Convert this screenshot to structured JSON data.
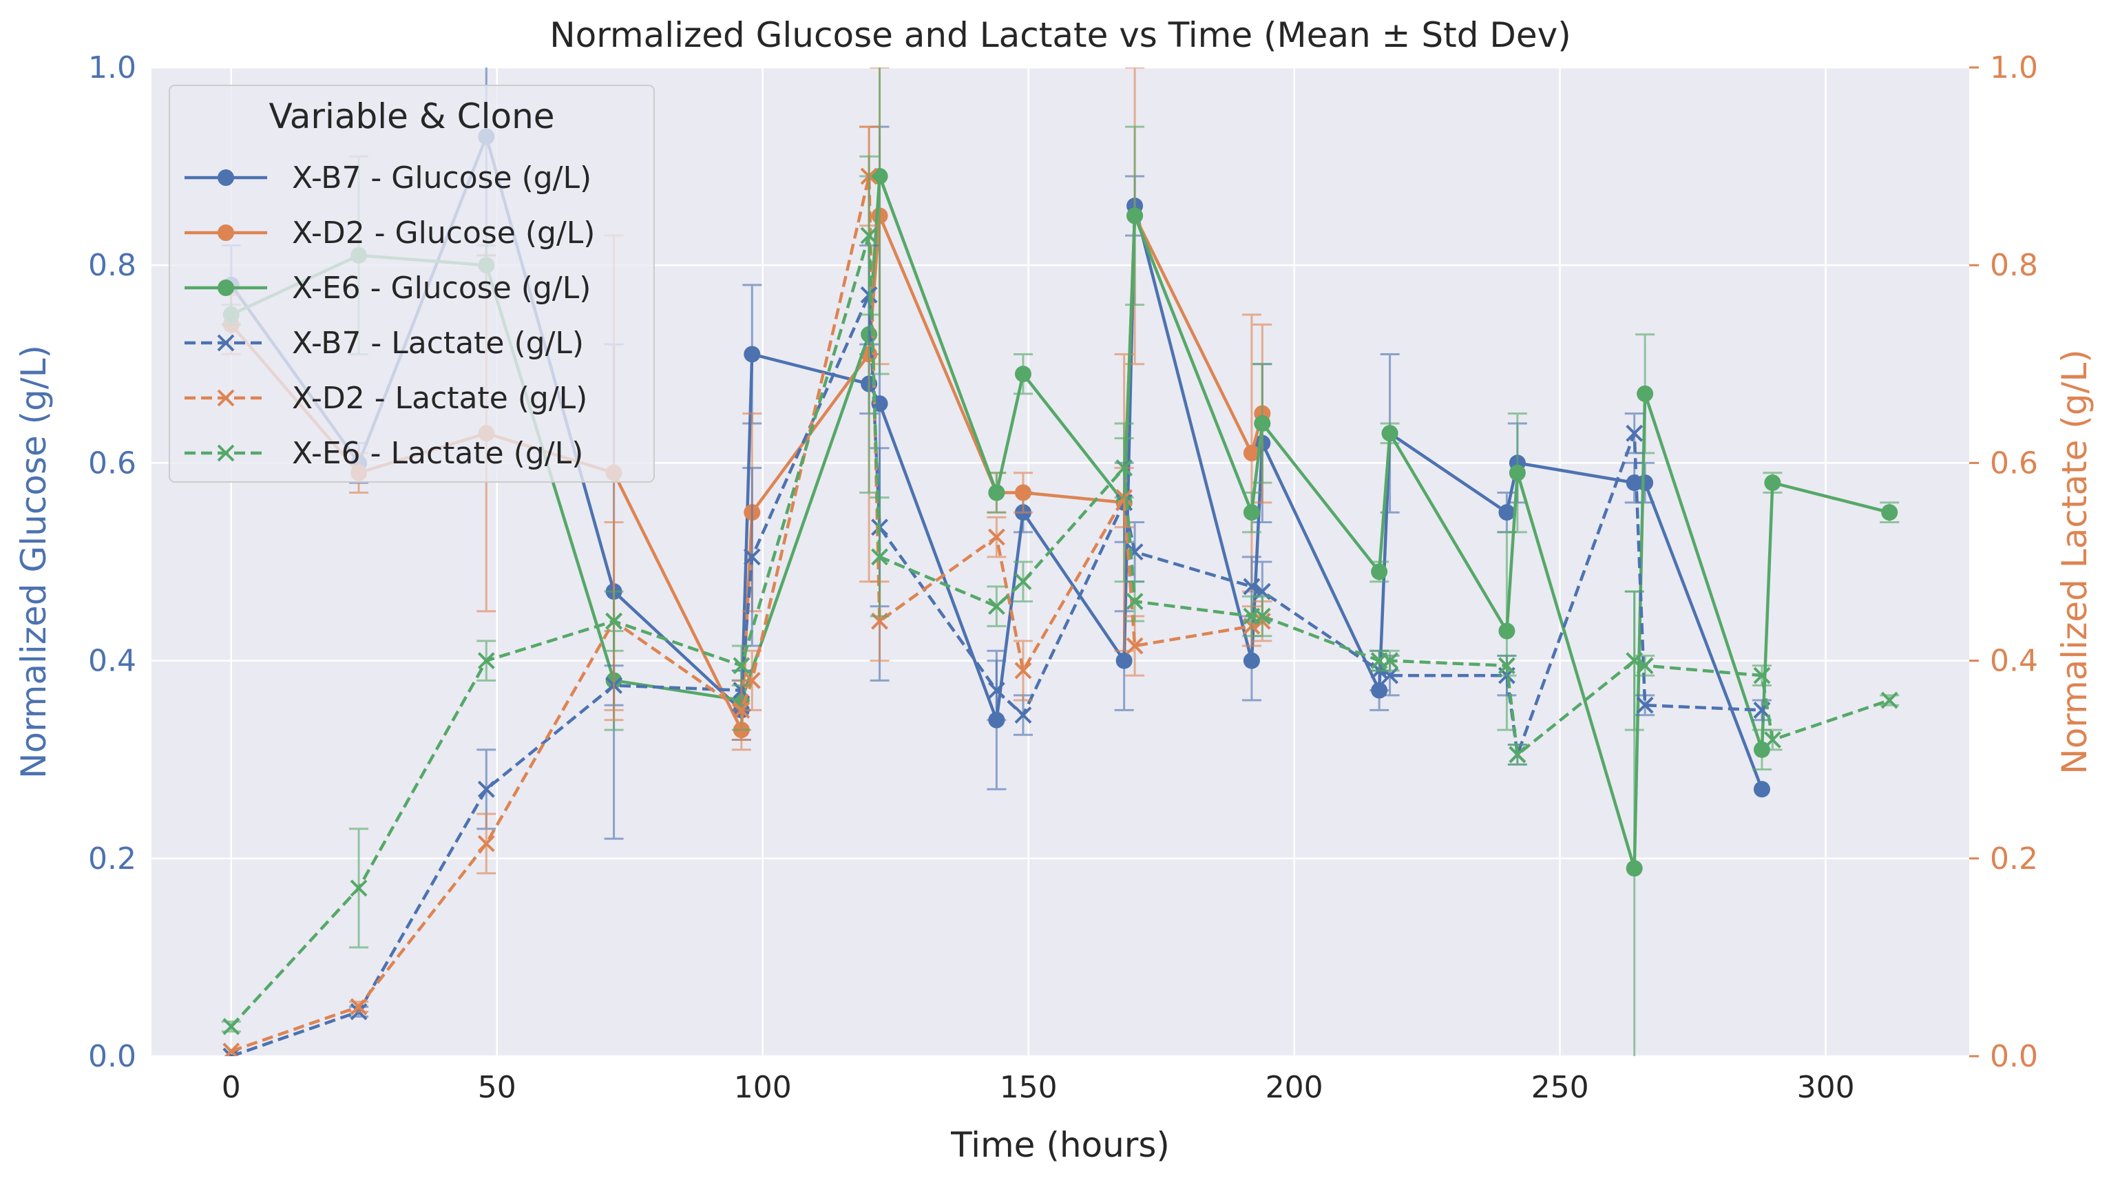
{
  "chart_data": {
    "type": "line",
    "title": "Normalized Glucose and Lactate vs Time (Mean ± Std Dev)",
    "xlabel": "Time (hours)",
    "ylabel_left": "Normalized Glucose (g/L)",
    "ylabel_right": "Normalized Lactate (g/L)",
    "xlim": [
      -15,
      327
    ],
    "ylim_left": [
      0,
      1
    ],
    "ylim_right": [
      0,
      1
    ],
    "xticks": [
      "0",
      "50",
      "100",
      "150",
      "200",
      "250",
      "300"
    ],
    "yticks_left": [
      "0.0",
      "0.2",
      "0.4",
      "0.6",
      "0.8",
      "1.0"
    ],
    "yticks_right": [
      "0.0",
      "0.2",
      "0.4",
      "0.6",
      "0.8",
      "1.0"
    ],
    "grid": true,
    "legend_title": "Variable & Clone",
    "legend_position": "top-left",
    "colors": {
      "axis_left": "#4c72b0",
      "axis_right": "#dd8452",
      "background": "#eaeaf2",
      "grid": "#ffffff"
    },
    "series": [
      {
        "name": "X-B7 - Glucose (g/L)",
        "color": "#4c72b0",
        "style": "solid",
        "marker": "circle",
        "x": [
          0,
          24,
          48,
          72,
          96,
          98,
          120,
          122,
          144,
          149,
          168,
          170,
          192,
          194,
          216,
          218,
          240,
          242,
          264,
          266,
          288
        ],
        "y": [
          0.78,
          0.6,
          0.93,
          0.47,
          0.35,
          0.71,
          0.68,
          0.66,
          0.34,
          0.55,
          0.4,
          0.86,
          0.4,
          0.62,
          0.37,
          0.63,
          0.55,
          0.6,
          0.58,
          0.58,
          0.27
        ],
        "err": [
          0.04,
          0.02,
          0.12,
          0.25,
          0.03,
          0.07,
          0.03,
          0.28,
          0.07,
          0.02,
          0.05,
          0.03,
          0.04,
          0.08,
          0.02,
          0.08,
          0.02,
          0.04,
          0.02,
          0.02,
          0.0
        ]
      },
      {
        "name": "X-D2 - Glucose (g/L)",
        "color": "#dd8452",
        "style": "solid",
        "marker": "circle",
        "x": [
          0,
          24,
          48,
          72,
          96,
          98,
          120,
          122,
          144,
          149,
          168,
          170,
          192,
          194
        ],
        "y": [
          0.74,
          0.59,
          0.63,
          0.59,
          0.33,
          0.55,
          0.71,
          0.85,
          0.57,
          0.57,
          0.56,
          0.85,
          0.61,
          0.65
        ],
        "err": [
          0.03,
          0.02,
          0.18,
          0.24,
          0.02,
          0.1,
          0.23,
          0.15,
          0.02,
          0.02,
          0.15,
          0.15,
          0.14,
          0.09
        ]
      },
      {
        "name": "X-E6 - Glucose (g/L)",
        "color": "#55a868",
        "style": "solid",
        "marker": "circle",
        "x": [
          0,
          24,
          48,
          72,
          96,
          120,
          122,
          144,
          149,
          168,
          170,
          192,
          194,
          216,
          218,
          240,
          242,
          264,
          266,
          288,
          290,
          312
        ],
        "y": [
          0.75,
          0.81,
          0.8,
          0.38,
          0.36,
          0.73,
          0.89,
          0.57,
          0.69,
          0.56,
          0.85,
          0.55,
          0.64,
          0.49,
          0.63,
          0.43,
          0.59,
          0.19,
          0.67,
          0.31,
          0.58,
          0.55
        ],
        "err": [
          0.01,
          0.1,
          0.02,
          0.05,
          0.03,
          0.16,
          0.2,
          0.02,
          0.02,
          0.08,
          0.09,
          0.02,
          0.06,
          0.01,
          0.01,
          0.1,
          0.06,
          0.28,
          0.06,
          0.02,
          0.01,
          0.01
        ]
      },
      {
        "name": "X-B7 - Lactate (g/L)",
        "color": "#4c72b0",
        "style": "dashed",
        "marker": "x",
        "x": [
          0,
          24,
          48,
          72,
          96,
          98,
          120,
          122,
          144,
          149,
          168,
          170,
          192,
          194,
          216,
          218,
          240,
          242,
          264,
          266,
          288
        ],
        "y": [
          0.0,
          0.045,
          0.27,
          0.375,
          0.37,
          0.505,
          0.77,
          0.535,
          0.37,
          0.345,
          0.56,
          0.51,
          0.475,
          0.47,
          0.39,
          0.385,
          0.385,
          0.305,
          0.63,
          0.355,
          0.35
        ],
        "err": [
          0.0,
          0.005,
          0.04,
          0.02,
          0.02,
          0.09,
          0.05,
          0.08,
          0.03,
          0.02,
          0.04,
          0.03,
          0.03,
          0.03,
          0.02,
          0.02,
          0.02,
          0.01,
          0.02,
          0.01,
          0.01
        ]
      },
      {
        "name": "X-D2 - Lactate (g/L)",
        "color": "#dd8452",
        "style": "dashed",
        "marker": "x",
        "x": [
          0,
          24,
          48,
          72,
          96,
          98,
          120,
          122,
          144,
          149,
          168,
          170,
          192,
          194
        ],
        "y": [
          0.005,
          0.05,
          0.215,
          0.44,
          0.35,
          0.38,
          0.89,
          0.44,
          0.525,
          0.39,
          0.565,
          0.415,
          0.435,
          0.44
        ],
        "err": [
          0.0,
          0.005,
          0.03,
          0.1,
          0.03,
          0.03,
          0.05,
          0.04,
          0.02,
          0.03,
          0.03,
          0.03,
          0.02,
          0.02
        ]
      },
      {
        "name": "X-E6 - Lactate (g/L)",
        "color": "#55a868",
        "style": "dashed",
        "marker": "x",
        "x": [
          0,
          24,
          48,
          72,
          96,
          120,
          122,
          144,
          149,
          168,
          170,
          192,
          194,
          216,
          218,
          240,
          242,
          264,
          266,
          288,
          290,
          312
        ],
        "y": [
          0.03,
          0.17,
          0.4,
          0.44,
          0.395,
          0.83,
          0.505,
          0.455,
          0.48,
          0.595,
          0.46,
          0.445,
          0.445,
          0.4,
          0.4,
          0.395,
          0.305,
          0.4,
          0.395,
          0.385,
          0.32,
          0.36
        ],
        "err": [
          0.005,
          0.06,
          0.02,
          0.03,
          0.02,
          0.08,
          0.06,
          0.02,
          0.02,
          0.03,
          0.02,
          0.02,
          0.02,
          0.01,
          0.01,
          0.01,
          0.01,
          0.07,
          0.01,
          0.01,
          0.01,
          0.005
        ]
      }
    ]
  }
}
